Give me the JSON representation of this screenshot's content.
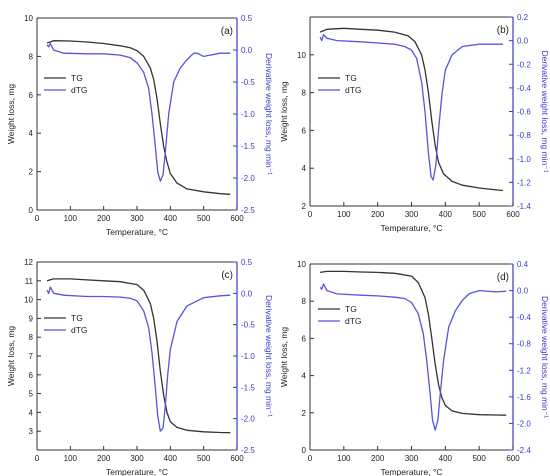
{
  "chart_data": [
    {
      "type": "line",
      "panel_label": "(a)",
      "xlabel": "Temperature, °C",
      "ylabel_left": "Weight loss, mg",
      "ylabel_right": "Derivative weight loss, mg min⁻¹",
      "xlim": [
        0,
        600
      ],
      "ylim_left": [
        0,
        10
      ],
      "ylim_right": [
        -2.5,
        0.5
      ],
      "xticks": [
        "0",
        "100",
        "200",
        "300",
        "400",
        "500",
        "600"
      ],
      "yticks_left": [
        "0",
        "2",
        "4",
        "6",
        "8",
        "10"
      ],
      "yticks_right": [
        "-2.5",
        "-2.0",
        "-1.5",
        "-1.0",
        "-0.5",
        "0.0",
        "0.5"
      ],
      "legend": [
        "TG",
        "dTG"
      ],
      "legend_position": "middle-left",
      "grid": false,
      "series": [
        {
          "name": "TG",
          "axis": "left",
          "color": "#333333",
          "x": [
            30,
            50,
            100,
            150,
            200,
            250,
            280,
            300,
            320,
            340,
            350,
            360,
            370,
            380,
            390,
            400,
            420,
            450,
            500,
            550,
            580
          ],
          "y": [
            8.7,
            8.82,
            8.8,
            8.75,
            8.67,
            8.55,
            8.45,
            8.3,
            8.0,
            7.4,
            6.8,
            5.8,
            4.5,
            3.3,
            2.5,
            1.9,
            1.4,
            1.1,
            0.95,
            0.85,
            0.82
          ]
        },
        {
          "name": "dTG",
          "axis": "right",
          "color": "#5555dd",
          "x": [
            30,
            35,
            40,
            50,
            80,
            150,
            200,
            250,
            280,
            300,
            320,
            335,
            345,
            355,
            362,
            370,
            378,
            385,
            395,
            410,
            430,
            450,
            470,
            480,
            500,
            550,
            580
          ],
          "y": [
            0.08,
            0.05,
            0.1,
            0.0,
            -0.05,
            -0.06,
            -0.06,
            -0.08,
            -0.12,
            -0.2,
            -0.35,
            -0.6,
            -1.0,
            -1.5,
            -1.9,
            -2.05,
            -1.95,
            -1.6,
            -1.0,
            -0.5,
            -0.28,
            -0.15,
            -0.05,
            -0.05,
            -0.1,
            -0.05,
            -0.05
          ]
        }
      ]
    },
    {
      "type": "line",
      "panel_label": "(b)",
      "xlabel": "Temperature, °C",
      "ylabel_left": "Weight loss, mg",
      "ylabel_right": "Derivative weight loss, mg min⁻¹",
      "xlim": [
        0,
        600
      ],
      "ylim_left": [
        2,
        12
      ],
      "ylim_right": [
        -1.4,
        0.2
      ],
      "xticks": [
        "0",
        "100",
        "200",
        "300",
        "400",
        "500",
        "600"
      ],
      "yticks_left": [
        "2",
        "4",
        "6",
        "8",
        "10"
      ],
      "yticks_right": [
        "-1.4",
        "-1.2",
        "-1.0",
        "-0.8",
        "-0.6",
        "-0.4",
        "-0.2",
        "0.0",
        "0.2"
      ],
      "legend": [
        "TG",
        "dTG"
      ],
      "legend_position": "top-left",
      "grid": false,
      "series": [
        {
          "name": "TG",
          "axis": "left",
          "color": "#333333",
          "x": [
            30,
            50,
            100,
            150,
            200,
            250,
            290,
            310,
            330,
            340,
            350,
            360,
            370,
            380,
            395,
            420,
            450,
            500,
            550,
            570
          ],
          "y": [
            11.2,
            11.35,
            11.4,
            11.35,
            11.3,
            11.2,
            11.0,
            10.7,
            10.0,
            9.2,
            8.0,
            6.5,
            5.2,
            4.3,
            3.7,
            3.3,
            3.1,
            2.95,
            2.85,
            2.82
          ]
        },
        {
          "name": "dTG",
          "axis": "right",
          "color": "#5555dd",
          "x": [
            30,
            35,
            40,
            50,
            80,
            150,
            200,
            250,
            280,
            300,
            315,
            330,
            340,
            350,
            358,
            364,
            372,
            380,
            390,
            400,
            420,
            450,
            500,
            550,
            570
          ],
          "y": [
            0.03,
            0.0,
            0.05,
            0.02,
            0.0,
            -0.01,
            -0.02,
            -0.03,
            -0.05,
            -0.08,
            -0.15,
            -0.35,
            -0.6,
            -0.95,
            -1.15,
            -1.18,
            -1.05,
            -0.75,
            -0.45,
            -0.25,
            -0.12,
            -0.05,
            -0.03,
            -0.03,
            -0.03
          ]
        }
      ]
    },
    {
      "type": "line",
      "panel_label": "(c)",
      "xlabel": "Temperature, °C",
      "ylabel_left": "Weight loss, mg",
      "ylabel_right": "Derivative weight loss, mg min⁻¹",
      "xlim": [
        0,
        600
      ],
      "ylim_left": [
        2,
        12
      ],
      "ylim_right": [
        -2.5,
        0.5
      ],
      "xticks": [
        "0",
        "100",
        "200",
        "300",
        "400",
        "500",
        "600"
      ],
      "yticks_left": [
        "3",
        "4",
        "5",
        "6",
        "7",
        "8",
        "9",
        "10",
        "11",
        "12"
      ],
      "yticks_right": [
        "-2.5",
        "-2.0",
        "-1.5",
        "-1.0",
        "-0.5",
        "0.0",
        "0.5"
      ],
      "legend": [
        "TG",
        "dTG"
      ],
      "legend_position": "middle-left",
      "grid": false,
      "series": [
        {
          "name": "TG",
          "axis": "left",
          "color": "#333333",
          "x": [
            30,
            50,
            100,
            150,
            200,
            250,
            300,
            320,
            340,
            350,
            360,
            370,
            380,
            390,
            400,
            420,
            450,
            500,
            550,
            580
          ],
          "y": [
            11.0,
            11.1,
            11.1,
            11.05,
            11.0,
            10.95,
            10.8,
            10.5,
            9.8,
            9.0,
            7.8,
            6.2,
            4.9,
            4.0,
            3.5,
            3.2,
            3.05,
            2.97,
            2.93,
            2.92
          ]
        },
        {
          "name": "dTG",
          "axis": "right",
          "color": "#5555dd",
          "x": [
            30,
            35,
            40,
            50,
            80,
            150,
            200,
            250,
            280,
            300,
            320,
            335,
            345,
            355,
            362,
            370,
            378,
            385,
            392,
            400,
            420,
            450,
            500,
            550,
            580
          ],
          "y": [
            0.05,
            0.0,
            0.1,
            0.0,
            -0.03,
            -0.05,
            -0.05,
            -0.06,
            -0.08,
            -0.12,
            -0.28,
            -0.55,
            -0.95,
            -1.5,
            -1.95,
            -2.2,
            -2.15,
            -1.8,
            -1.3,
            -0.9,
            -0.45,
            -0.2,
            -0.07,
            -0.04,
            -0.03
          ]
        }
      ]
    },
    {
      "type": "line",
      "panel_label": "(d)",
      "xlabel": "Temperature, °C",
      "ylabel_left": "Weight loss, mg",
      "ylabel_right": "Derivative weight loss, mg min⁻¹",
      "xlim": [
        0,
        600
      ],
      "ylim_left": [
        0,
        10
      ],
      "ylim_right": [
        -2.4,
        0.4
      ],
      "xticks": [
        "0",
        "100",
        "200",
        "300",
        "400",
        "500",
        "600"
      ],
      "yticks_left": [
        "0",
        "2",
        "4",
        "6",
        "8",
        "10"
      ],
      "yticks_right": [
        "-2.4",
        "-2.0",
        "-1.6",
        "-1.2",
        "-0.8",
        "-0.4",
        "0.0",
        "0.4"
      ],
      "legend": [
        "TG",
        "dTG"
      ],
      "legend_position": "middle-left",
      "grid": false,
      "series": [
        {
          "name": "TG",
          "axis": "left",
          "color": "#333333",
          "x": [
            30,
            50,
            100,
            150,
            200,
            250,
            300,
            320,
            340,
            350,
            360,
            370,
            380,
            390,
            400,
            420,
            450,
            500,
            550,
            580
          ],
          "y": [
            9.55,
            9.6,
            9.6,
            9.57,
            9.55,
            9.5,
            9.35,
            9.0,
            8.2,
            7.3,
            6.0,
            4.6,
            3.5,
            2.8,
            2.4,
            2.1,
            1.97,
            1.9,
            1.88,
            1.87
          ]
        },
        {
          "name": "dTG",
          "axis": "right",
          "color": "#5555dd",
          "x": [
            30,
            35,
            40,
            50,
            80,
            150,
            200,
            250,
            280,
            300,
            320,
            335,
            345,
            355,
            362,
            370,
            378,
            385,
            395,
            410,
            430,
            450,
            470,
            480,
            500,
            550,
            580
          ],
          "y": [
            0.05,
            0.02,
            0.1,
            0.0,
            -0.05,
            -0.07,
            -0.08,
            -0.1,
            -0.12,
            -0.18,
            -0.35,
            -0.65,
            -1.05,
            -1.55,
            -1.95,
            -2.1,
            -1.95,
            -1.55,
            -1.05,
            -0.55,
            -0.3,
            -0.15,
            -0.05,
            -0.03,
            0.0,
            -0.02,
            -0.01
          ]
        }
      ]
    }
  ]
}
